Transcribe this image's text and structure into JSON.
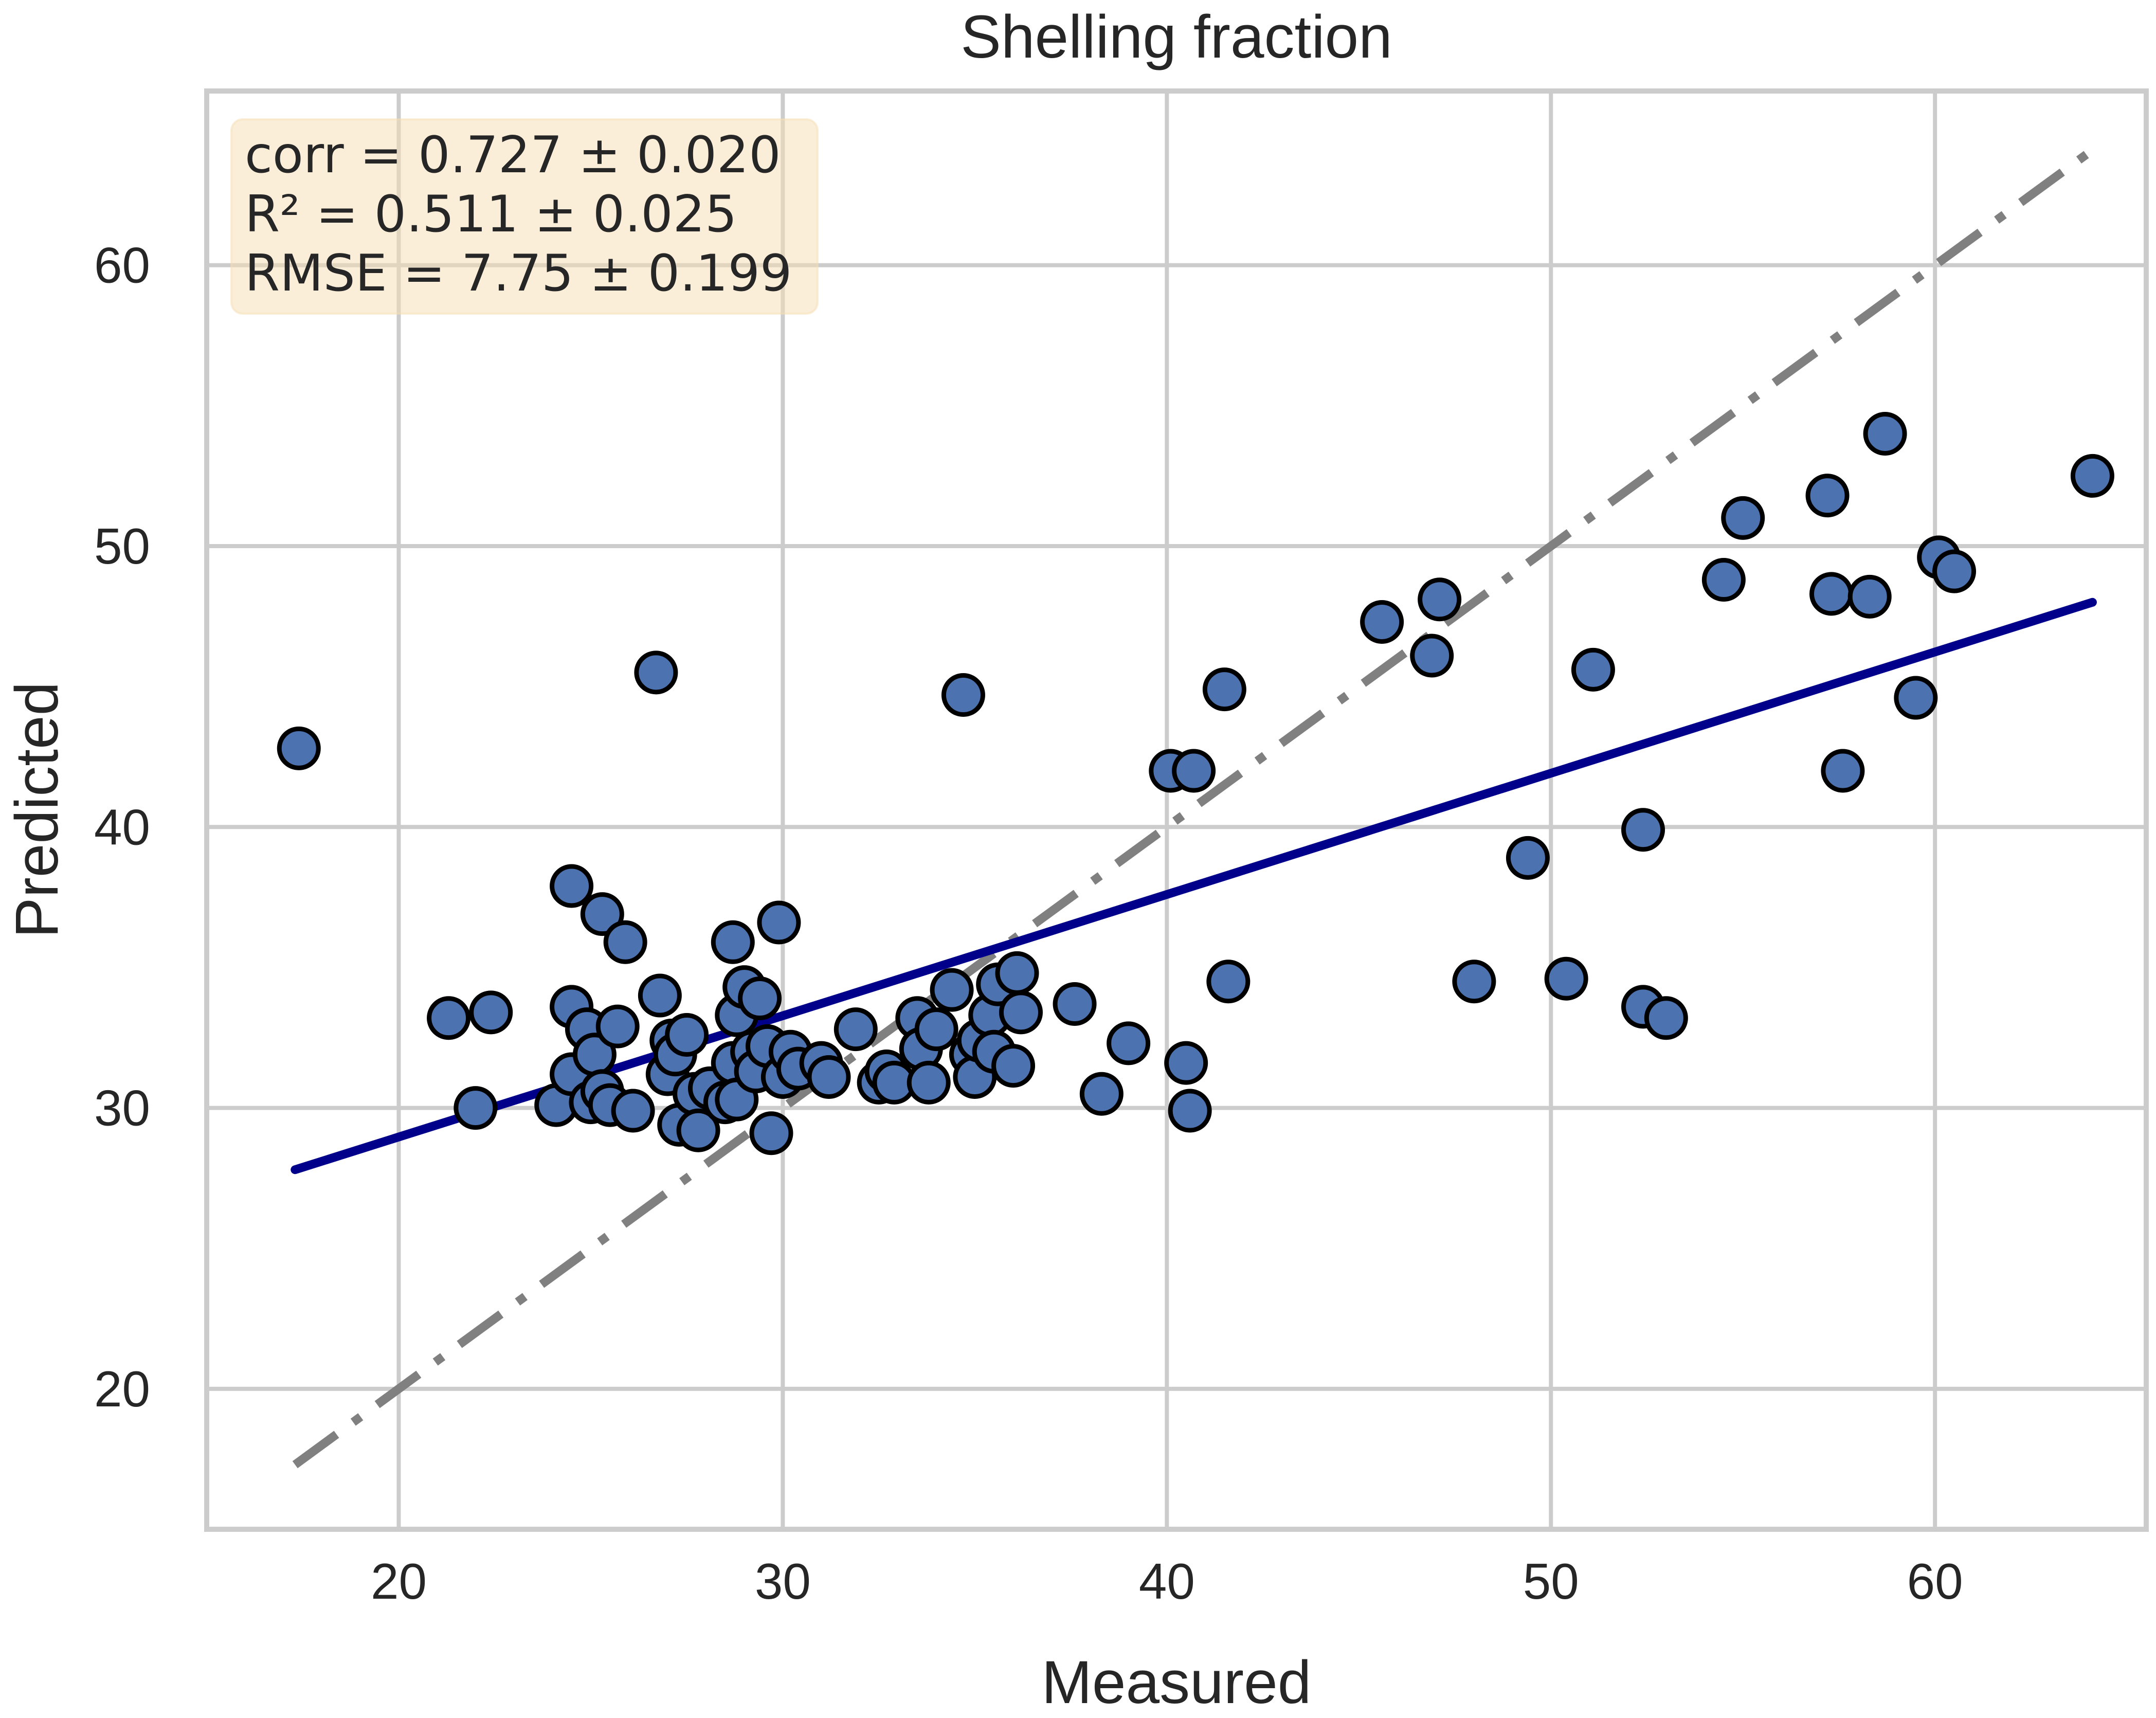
{
  "chart_data": {
    "type": "scatter",
    "title": "Shelling fraction",
    "xlabel": "Measured",
    "ylabel": "Predicted",
    "xlim": [
      15,
      65.5
    ],
    "ylim": [
      15,
      66.2
    ],
    "xticks": [
      20,
      30,
      40,
      50,
      60
    ],
    "yticks": [
      20,
      30,
      40,
      50,
      60
    ],
    "grid": true,
    "stats": {
      "corr": "corr = 0.727 ± 0.020",
      "r2": "R² = 0.511 ± 0.025",
      "rmse": "RMSE = 7.75 ± 0.199"
    },
    "identity_line": {
      "x": [
        17.3,
        64.1
      ],
      "y": [
        17.3,
        64.1
      ],
      "color": "#808080",
      "style": "dashdot"
    },
    "fit_line": {
      "x": [
        17.3,
        64.1
      ],
      "y": [
        27.8,
        48.0
      ],
      "color": "#00008b"
    },
    "point_color": "#4c72b0",
    "series": [
      {
        "name": "samples",
        "points": [
          [
            17.4,
            42.8
          ],
          [
            21.3,
            33.2
          ],
          [
            22.0,
            30.0
          ],
          [
            22.4,
            33.4
          ],
          [
            24.1,
            30.1
          ],
          [
            24.5,
            37.9
          ],
          [
            24.5,
            33.6
          ],
          [
            24.5,
            31.2
          ],
          [
            24.9,
            32.8
          ],
          [
            25.0,
            30.2
          ],
          [
            25.1,
            31.9
          ],
          [
            25.3,
            36.9
          ],
          [
            25.3,
            30.6
          ],
          [
            25.5,
            30.1
          ],
          [
            25.7,
            32.9
          ],
          [
            25.9,
            35.9
          ],
          [
            26.1,
            29.9
          ],
          [
            26.7,
            45.5
          ],
          [
            26.8,
            34.0
          ],
          [
            27.0,
            31.2
          ],
          [
            27.1,
            32.4
          ],
          [
            27.2,
            31.9
          ],
          [
            27.3,
            29.4
          ],
          [
            27.5,
            32.6
          ],
          [
            27.7,
            30.5
          ],
          [
            27.8,
            29.2
          ],
          [
            28.1,
            30.7
          ],
          [
            28.5,
            30.2
          ],
          [
            28.7,
            31.6
          ],
          [
            28.7,
            35.9
          ],
          [
            28.8,
            33.3
          ],
          [
            28.8,
            30.3
          ],
          [
            29.0,
            34.3
          ],
          [
            29.2,
            32.0
          ],
          [
            29.3,
            31.3
          ],
          [
            29.4,
            33.9
          ],
          [
            29.6,
            32.2
          ],
          [
            29.7,
            29.1
          ],
          [
            29.9,
            36.6
          ],
          [
            30.0,
            31.1
          ],
          [
            30.2,
            32.0
          ],
          [
            30.4,
            31.4
          ],
          [
            31.0,
            31.6
          ],
          [
            31.2,
            31.1
          ],
          [
            31.9,
            32.8
          ],
          [
            32.5,
            30.9
          ],
          [
            32.7,
            31.3
          ],
          [
            32.9,
            30.9
          ],
          [
            33.5,
            33.2
          ],
          [
            33.6,
            32.1
          ],
          [
            33.8,
            30.9
          ],
          [
            34.0,
            32.8
          ],
          [
            34.4,
            34.2
          ],
          [
            34.7,
            44.7
          ],
          [
            34.9,
            31.9
          ],
          [
            35.0,
            31.1
          ],
          [
            35.1,
            32.4
          ],
          [
            35.4,
            33.3
          ],
          [
            35.5,
            32.0
          ],
          [
            35.6,
            34.4
          ],
          [
            36.0,
            31.5
          ],
          [
            36.1,
            34.8
          ],
          [
            36.2,
            33.4
          ],
          [
            37.6,
            33.7
          ],
          [
            38.3,
            30.5
          ],
          [
            39.0,
            32.3
          ],
          [
            40.1,
            42.0
          ],
          [
            40.5,
            31.6
          ],
          [
            40.6,
            29.9
          ],
          [
            40.7,
            42.0
          ],
          [
            41.5,
            44.9
          ],
          [
            41.6,
            34.5
          ],
          [
            45.6,
            47.3
          ],
          [
            46.9,
            46.1
          ],
          [
            47.1,
            48.1
          ],
          [
            48.0,
            34.5
          ],
          [
            49.4,
            38.9
          ],
          [
            50.4,
            34.6
          ],
          [
            51.1,
            45.6
          ],
          [
            52.4,
            33.6
          ],
          [
            52.4,
            39.9
          ],
          [
            53.0,
            33.2
          ],
          [
            54.5,
            48.8
          ],
          [
            55.0,
            51.0
          ],
          [
            57.2,
            51.8
          ],
          [
            57.3,
            48.3
          ],
          [
            57.6,
            42.0
          ],
          [
            58.3,
            48.2
          ],
          [
            58.7,
            54.0
          ],
          [
            59.5,
            44.6
          ],
          [
            60.1,
            49.6
          ],
          [
            60.5,
            49.1
          ],
          [
            64.1,
            52.5
          ]
        ]
      }
    ]
  }
}
